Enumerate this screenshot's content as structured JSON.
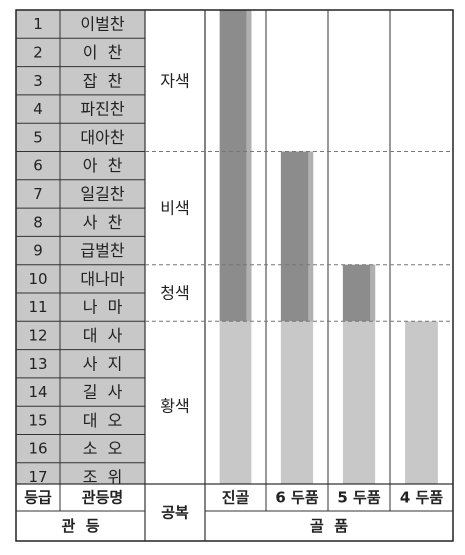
{
  "ranks": [
    {
      "num": "1",
      "name": "이벌찬"
    },
    {
      "num": "2",
      "name": "이  찬"
    },
    {
      "num": "3",
      "name": "잡  찬"
    },
    {
      "num": "4",
      "name": "파진찬"
    },
    {
      "num": "5",
      "name": "대아찬"
    },
    {
      "num": "6",
      "name": "아  찬"
    },
    {
      "num": "7",
      "name": "일길찬"
    },
    {
      "num": "8",
      "name": "사  찬"
    },
    {
      "num": "9",
      "name": "급벌찬"
    },
    {
      "num": "10",
      "name": "대나마"
    },
    {
      "num": "11",
      "name": "나  마"
    },
    {
      "num": "12",
      "name": "대  사"
    },
    {
      "num": "13",
      "name": "사  지"
    },
    {
      "num": "14",
      "name": "길  사"
    },
    {
      "num": "15",
      "name": "대  오"
    },
    {
      "num": "16",
      "name": "소  오"
    },
    {
      "num": "17",
      "name": "조  위"
    }
  ],
  "colors": [
    {
      "label": "자색",
      "from_rank": 1,
      "to_rank": 5
    },
    {
      "label": "비색",
      "from_rank": 6,
      "to_rank": 9
    },
    {
      "label": "청색",
      "from_rank": 10,
      "to_rank": 11
    },
    {
      "label": "황색",
      "from_rank": 12,
      "to_rank": 17
    }
  ],
  "bone_ranks": [
    {
      "label": "진골",
      "highest_rank": 1
    },
    {
      "label": "6 두품",
      "highest_rank": 6
    },
    {
      "label": "5 두품",
      "highest_rank": 10
    },
    {
      "label": "4 두품",
      "highest_rank": 12
    }
  ],
  "headers": {
    "grade": "등급",
    "rank_name": "관등명",
    "official_colors": "공복",
    "rank_group": "관  등",
    "bone_group": "골  품"
  },
  "style": {
    "grey_cell": "#c8c8c8",
    "dark_bar": "#8c8c8c",
    "light_bar": "#c8c8c8"
  }
}
